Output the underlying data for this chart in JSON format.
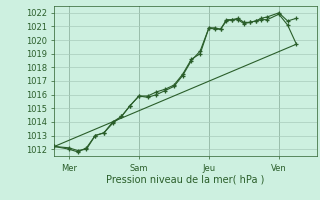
{
  "xlabel": "Pression niveau de la mer( hPa )",
  "bg_color": "#cdf0e0",
  "grid_color": "#a8ccbb",
  "line_color": "#2a5e2a",
  "xlim": [
    0,
    90
  ],
  "ylim": [
    1011.5,
    1022.5
  ],
  "yticks": [
    1012,
    1013,
    1014,
    1015,
    1016,
    1017,
    1018,
    1019,
    1020,
    1021,
    1022
  ],
  "xtick_positions": [
    5,
    29,
    53,
    77
  ],
  "xtick_labels": [
    "Mer",
    "Sam",
    "Jeu",
    "Ven"
  ],
  "vline_positions": [
    5,
    29,
    53,
    77
  ],
  "line1_x": [
    0,
    5,
    8,
    11,
    14,
    17,
    20,
    23,
    26,
    29,
    32,
    35,
    38,
    41,
    44,
    47,
    50,
    53,
    55,
    57,
    59,
    61,
    63,
    65,
    67,
    69,
    71,
    73,
    77,
    80,
    83
  ],
  "line1_y": [
    1012.2,
    1012.0,
    1011.8,
    1012.1,
    1013.0,
    1013.2,
    1014.0,
    1014.4,
    1015.2,
    1015.9,
    1015.9,
    1016.2,
    1016.4,
    1016.7,
    1017.5,
    1018.6,
    1019.0,
    1020.9,
    1020.9,
    1020.8,
    1021.5,
    1021.5,
    1021.5,
    1021.2,
    1021.3,
    1021.4,
    1021.5,
    1021.5,
    1021.9,
    1021.1,
    1019.7
  ],
  "line2_x": [
    0,
    5,
    8,
    11,
    14,
    17,
    20,
    23,
    26,
    29,
    32,
    35,
    38,
    41,
    44,
    47,
    50,
    53,
    55,
    57,
    59,
    61,
    63,
    65,
    67,
    69,
    71,
    73,
    77,
    80,
    83
  ],
  "line2_y": [
    1012.2,
    1012.1,
    1011.9,
    1012.0,
    1013.0,
    1013.2,
    1013.9,
    1014.4,
    1015.2,
    1015.9,
    1015.8,
    1016.0,
    1016.3,
    1016.6,
    1017.4,
    1018.5,
    1019.2,
    1020.9,
    1020.8,
    1020.8,
    1021.4,
    1021.5,
    1021.6,
    1021.3,
    1021.3,
    1021.4,
    1021.6,
    1021.7,
    1022.0,
    1021.4,
    1021.6
  ],
  "line3_x": [
    0,
    83
  ],
  "line3_y": [
    1012.2,
    1019.7
  ]
}
